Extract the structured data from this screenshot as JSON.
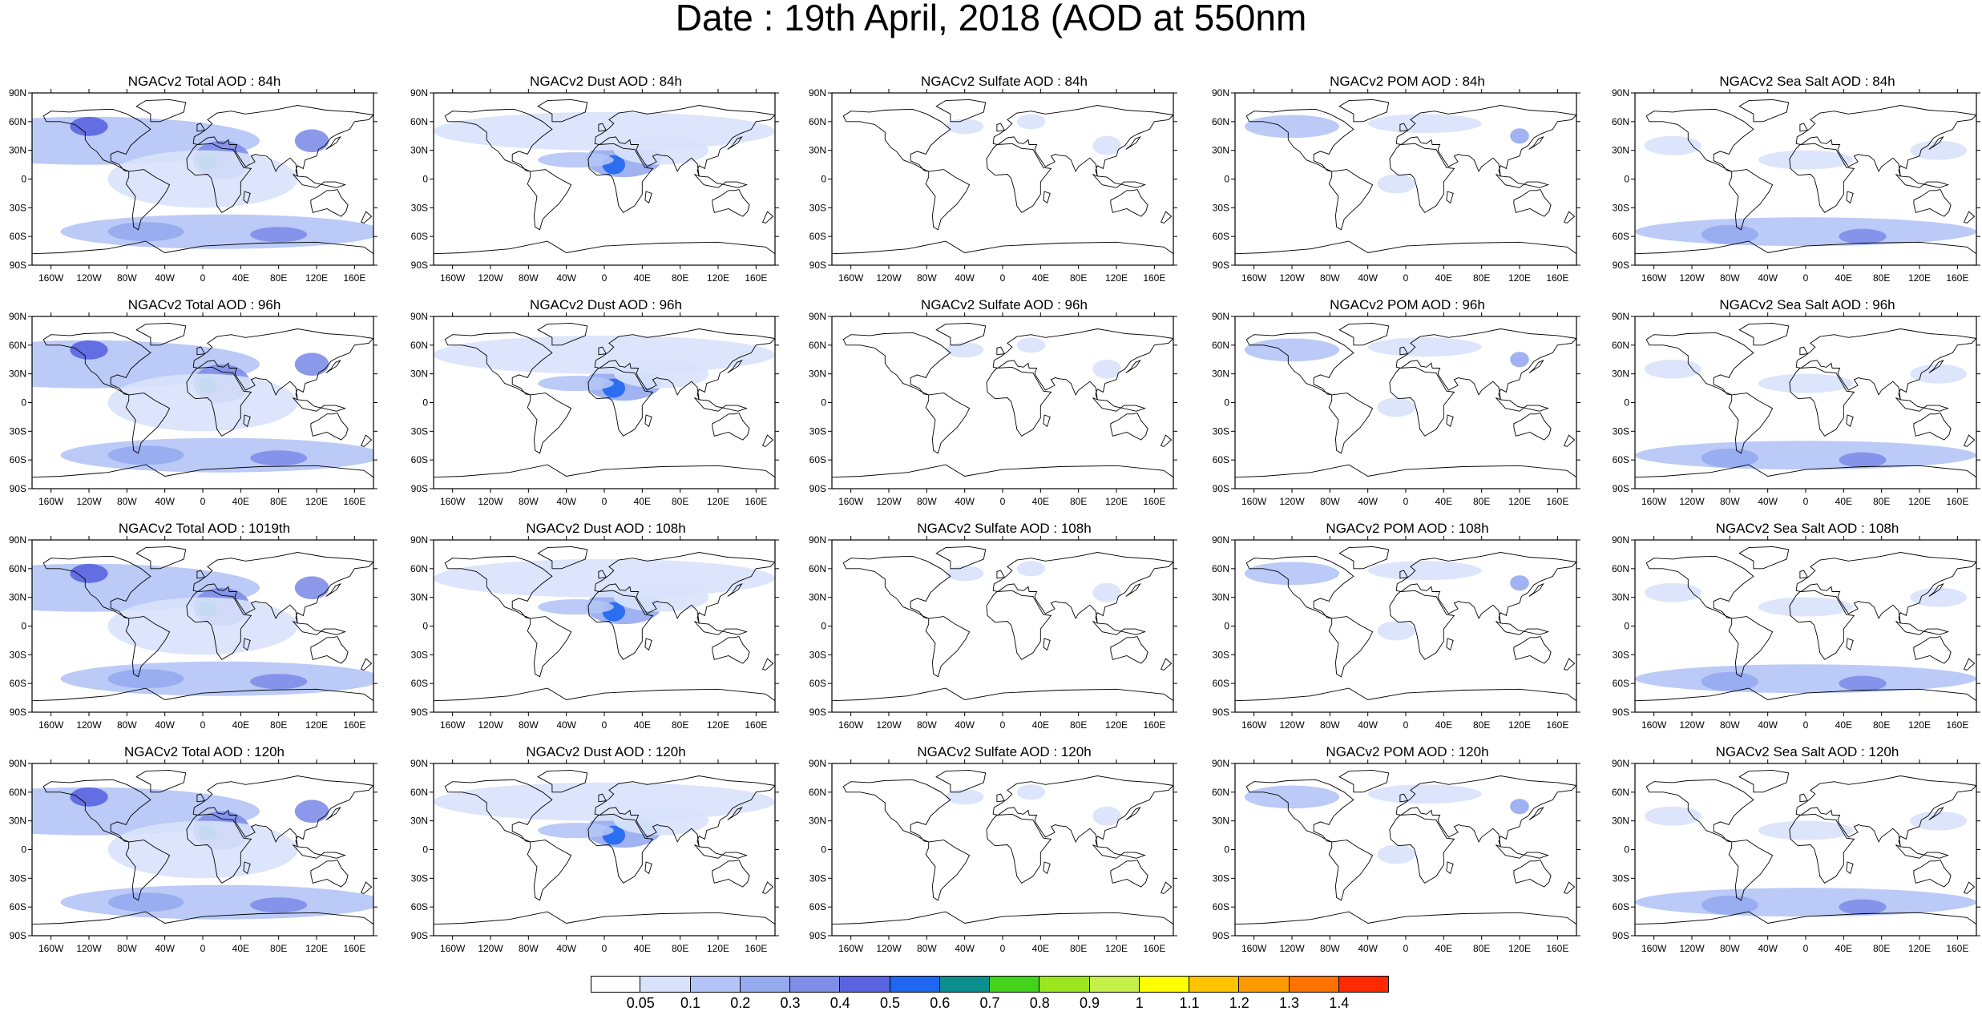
{
  "title": "Date : 19th April, 2018 (AOD at 550nm",
  "panels": [
    [
      "NGACv2 Total AOD : 84h",
      "NGACv2 Dust AOD : 84h",
      "NGACv2 Sulfate AOD : 84h",
      "NGACv2 POM AOD : 84h",
      "NGACv2 Sea Salt AOD : 84h"
    ],
    [
      "NGACv2 Total AOD : 96h",
      "NGACv2 Dust AOD : 96h",
      "NGACv2 Sulfate AOD : 96h",
      "NGACv2 POM AOD : 96h",
      "NGACv2 Sea Salt AOD : 96h"
    ],
    [
      "NGACv2 Total AOD : 1019th",
      "NGACv2 Dust AOD : 108h",
      "NGACv2 Sulfate AOD : 108h",
      "NGACv2 POM AOD : 108h",
      "NGACv2 Sea Salt AOD : 108h"
    ],
    [
      "NGACv2 Total AOD : 120h",
      "NGACv2 Dust AOD : 120h",
      "NGACv2 Sulfate AOD : 120h",
      "NGACv2 POM AOD : 120h",
      "NGACv2 Sea Salt  AOD : 120h"
    ]
  ],
  "lat_labels": [
    "90N",
    "60N",
    "30N",
    "0",
    "30S",
    "60S",
    "90S"
  ],
  "lon_labels": [
    "160W",
    "120W",
    "80W",
    "40W",
    "0",
    "40E",
    "80E",
    "120E",
    "160E"
  ],
  "lon_values": [
    -160,
    -120,
    -80,
    -40,
    0,
    40,
    80,
    120,
    160
  ],
  "colorbar": {
    "labels": [
      "0.05",
      "0.1",
      "0.2",
      "0.3",
      "0.4",
      "0.5",
      "0.6",
      "0.7",
      "0.8",
      "0.9",
      "1",
      "1.1",
      "1.2",
      "1.3",
      "1.4"
    ],
    "colors": [
      "#ffffff",
      "#d8e2fb",
      "#b4c4f6",
      "#96aaf0",
      "#7f8ee8",
      "#5b64e0",
      "#1f66f0",
      "#0b8e8e",
      "#44d21a",
      "#9be61e",
      "#c6f04a",
      "#ffff00",
      "#ffc400",
      "#ff9b00",
      "#ff7200",
      "#ff2a00"
    ]
  }
}
